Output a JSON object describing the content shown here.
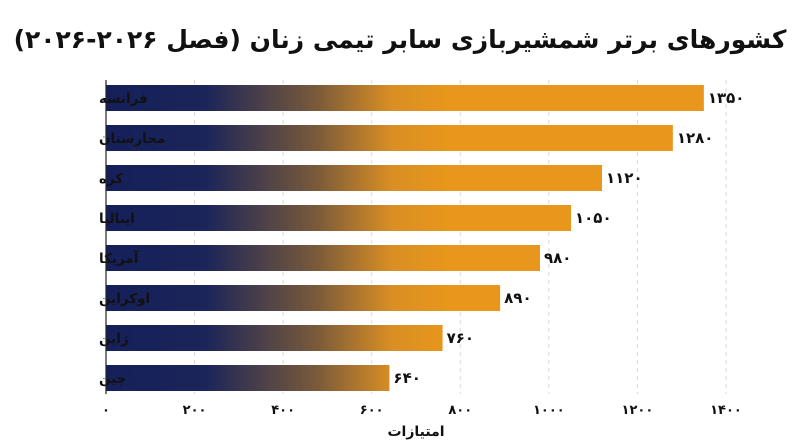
{
  "chart_data": {
    "type": "bar",
    "orientation": "horizontal",
    "title": "کشورهای برتر شمشیربازی سابر تیمی زنان (فصل ۲۰۲۶-۲۰۲۶)",
    "xlabel": "امتیازات",
    "ylabel": "",
    "categories": [
      "فرانسه",
      "مجارستان",
      "کره",
      "ایتالیا",
      "آمریکا",
      "اوکراین",
      "ژاپن",
      "چین"
    ],
    "values": [
      1350,
      1280,
      1120,
      1050,
      980,
      890,
      760,
      640
    ],
    "value_labels": [
      "۱۳۵۰",
      "۱۲۸۰",
      "۱۱۲۰",
      "۱۰۵۰",
      "۹۸۰",
      "۸۹۰",
      "۷۶۰",
      "۶۴۰"
    ],
    "xlim": [
      0,
      1400
    ],
    "xticks": [
      0,
      200,
      400,
      600,
      800,
      1000,
      1200,
      1400
    ],
    "xtick_labels": [
      "۰",
      "۲۰۰",
      "۴۰۰",
      "۶۰۰",
      "۸۰۰",
      "۱۰۰۰",
      "۱۲۰۰",
      "۱۴۰۰"
    ],
    "grid": true,
    "colors": {
      "gradient_start": "#15205a",
      "gradient_end": "#e8971c"
    }
  }
}
